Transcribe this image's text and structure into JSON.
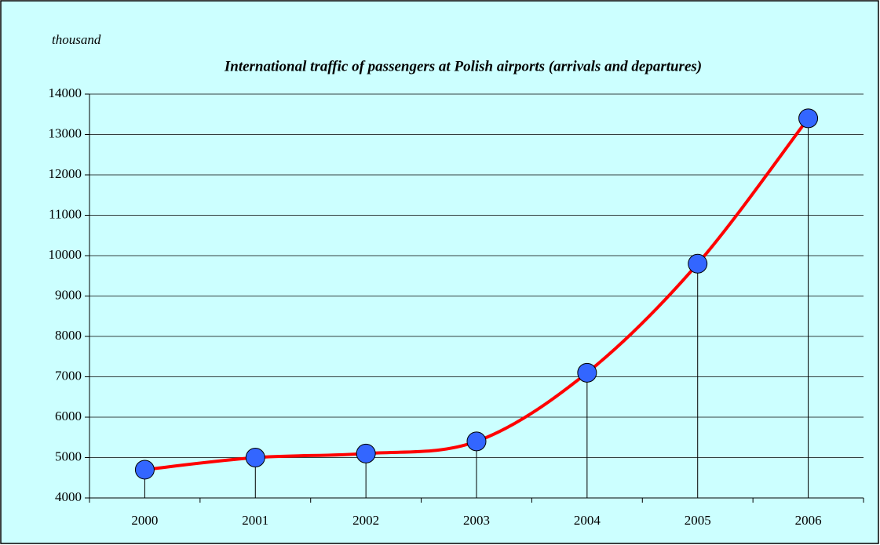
{
  "chart_data": {
    "type": "line",
    "title": "International traffic of passengers at Polish airports (arrivals and departures)",
    "y_label": "thousand",
    "categories": [
      "2000",
      "2001",
      "2002",
      "2003",
      "2004",
      "2005",
      "2006"
    ],
    "values": [
      4700,
      5000,
      5100,
      5400,
      7100,
      9800,
      13400
    ],
    "color": "#ff0000",
    "marker_color": "#3366ff",
    "ylim": [
      4000,
      14000
    ],
    "yticks": [
      4000,
      5000,
      6000,
      7000,
      8000,
      9000,
      10000,
      11000,
      12000,
      13000,
      14000
    ],
    "grid": true
  }
}
